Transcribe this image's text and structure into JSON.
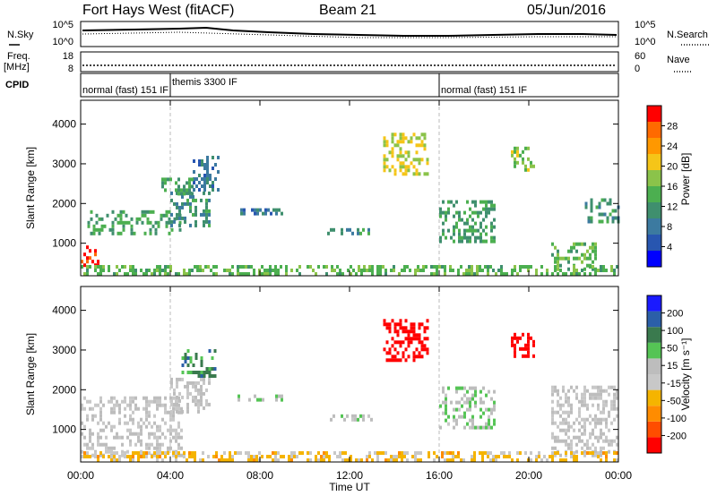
{
  "header": {
    "station": "Fort Hays West (fitACF)",
    "beam": "Beam 21",
    "date": "05/Jun/2016"
  },
  "strip_labels": {
    "nsky": "N.Sky",
    "freq_line1": "Freq.",
    "freq_line2": "[MHz]",
    "cpid": "CPID",
    "nsearch": "N.Search",
    "nave": "Nave"
  },
  "strip_ticks": {
    "noise_left": [
      "10^5",
      "10^0"
    ],
    "noise_right": [
      "10^5",
      "10^0"
    ],
    "freq_left": [
      "18",
      "8"
    ],
    "freq_right": [
      "60",
      "0"
    ]
  },
  "cpid_segments": [
    {
      "label": "normal (fast) 151 IF",
      "start_hour": 0.0
    },
    {
      "label": "themis 3300 IF",
      "start_hour": 4.0
    },
    {
      "label": "normal (fast) 151 IF",
      "start_hour": 16.0
    }
  ],
  "colors": {
    "power_scale": [
      "#0000ff",
      "#2856b0",
      "#3c7aa0",
      "#3f8f6e",
      "#4caf50",
      "#8bc34a",
      "#f5c518",
      "#ff9800",
      "#ff6a00",
      "#ff0000"
    ],
    "velocity_scale": [
      "#1a1aff",
      "#2b5fa8",
      "#3a7a4e",
      "#55c455",
      "#bdbdbd",
      "#c8c8c8",
      "#f5b400",
      "#ff8c00",
      "#ff4d00",
      "#ff0000"
    ],
    "axis": "#000000",
    "grid_dashed": "#bbbbbb"
  },
  "colorbars": {
    "power": {
      "label": "Power [dB]",
      "ticks": [
        "28",
        "24",
        "20",
        "16",
        "12",
        "8",
        "4"
      ]
    },
    "velocity": {
      "label": "Velocity [m s⁻¹]",
      "ticks": [
        "200",
        "100",
        "50",
        "15",
        "-15",
        "-50",
        "-100",
        "-200"
      ]
    }
  },
  "chart_data": [
    {
      "type": "heatmap",
      "name": "power",
      "xlabel": "Time UT",
      "ylabel": "Slant Range [km]",
      "x_ticks": [
        "00:00",
        "04:00",
        "08:00",
        "12:00",
        "16:00",
        "20:00",
        "00:00"
      ],
      "y_ticks": [
        "1000",
        "2000",
        "3000",
        "4000"
      ],
      "xlim_hours": [
        0,
        24
      ],
      "ylim_km": [
        180,
        4600
      ],
      "zlim": [
        0,
        30
      ],
      "regions": [
        {
          "t0": 0.0,
          "t1": 0.8,
          "r0": 400,
          "r1": 900,
          "value": 28
        },
        {
          "t0": 0.3,
          "t1": 4.5,
          "r0": 1200,
          "r1": 1800,
          "value": 12
        },
        {
          "t0": 4.0,
          "t1": 5.8,
          "r0": 1400,
          "r1": 2300,
          "value": 10
        },
        {
          "t0": 5.0,
          "t1": 6.2,
          "r0": 2300,
          "r1": 3200,
          "value": 8
        },
        {
          "t0": 3.6,
          "t1": 5.0,
          "r0": 2200,
          "r1": 2600,
          "value": 12
        },
        {
          "t0": 7.0,
          "t1": 9.0,
          "r0": 1700,
          "r1": 1800,
          "value": 8
        },
        {
          "t0": 11.0,
          "t1": 13.0,
          "r0": 1200,
          "r1": 1350,
          "value": 10
        },
        {
          "t0": 13.5,
          "t1": 15.5,
          "r0": 2700,
          "r1": 3700,
          "value": 18
        },
        {
          "t0": 16.0,
          "t1": 18.5,
          "r0": 1000,
          "r1": 2000,
          "value": 12
        },
        {
          "t0": 19.2,
          "t1": 20.2,
          "r0": 2800,
          "r1": 3400,
          "value": 16
        },
        {
          "t0": 21.0,
          "t1": 23.0,
          "r0": 300,
          "r1": 1000,
          "value": 14
        },
        {
          "t0": 22.5,
          "t1": 24.0,
          "r0": 1500,
          "r1": 2100,
          "value": 10
        },
        {
          "t0": 0.0,
          "t1": 24.0,
          "r0": 180,
          "r1": 380,
          "value": 14
        }
      ]
    },
    {
      "type": "heatmap",
      "name": "velocity",
      "xlabel": "Time UT",
      "ylabel": "Slant Range [km]",
      "x_ticks": [
        "00:00",
        "04:00",
        "08:00",
        "12:00",
        "16:00",
        "20:00",
        "00:00"
      ],
      "y_ticks": [
        "1000",
        "2000",
        "3000",
        "4000"
      ],
      "xlim_hours": [
        0,
        24
      ],
      "ylim_km": [
        180,
        4600
      ],
      "zlim": [
        -200,
        200
      ],
      "regions": [
        {
          "t0": 0.0,
          "t1": 4.5,
          "r0": 300,
          "r1": 1800,
          "value": 0
        },
        {
          "t0": 4.0,
          "t1": 5.8,
          "r0": 1400,
          "r1": 2300,
          "value": 0
        },
        {
          "t0": 4.5,
          "t1": 6.0,
          "r0": 2300,
          "r1": 3000,
          "value": 100
        },
        {
          "t0": 7.0,
          "t1": 9.0,
          "r0": 1700,
          "r1": 1800,
          "value": 40
        },
        {
          "t0": 11.0,
          "t1": 13.0,
          "r0": 1200,
          "r1": 1350,
          "value": 30
        },
        {
          "t0": 13.5,
          "t1": 15.5,
          "r0": 2700,
          "r1": 3700,
          "value": -200
        },
        {
          "t0": 16.0,
          "t1": 18.5,
          "r0": 1000,
          "r1": 2000,
          "value": 30
        },
        {
          "t0": 19.2,
          "t1": 20.2,
          "r0": 2800,
          "r1": 3400,
          "value": -200
        },
        {
          "t0": 21.0,
          "t1": 24.0,
          "r0": 300,
          "r1": 2100,
          "value": 0
        },
        {
          "t0": 0.0,
          "t1": 24.0,
          "r0": 180,
          "r1": 380,
          "value": -50
        }
      ]
    }
  ]
}
